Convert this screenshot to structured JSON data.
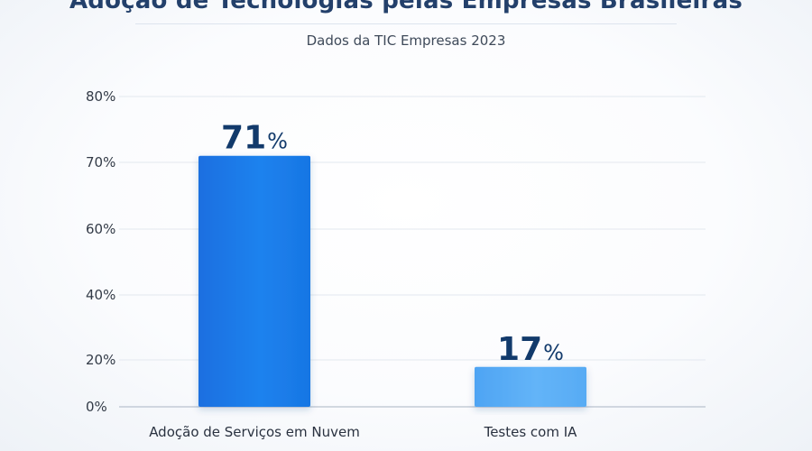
{
  "chart_data": {
    "type": "bar",
    "title": "Adoção de Tecnologias pelas Empresas Brasileiras",
    "subtitle": "Dados da TIC Empresas 2023",
    "categories": [
      "Adoção de Serviços em Nuvem",
      "Testes com IA"
    ],
    "values": [
      71,
      17
    ],
    "value_suffix": "%",
    "y_ticks": [
      0,
      20,
      40,
      60,
      70,
      80
    ],
    "y_tick_labels": [
      "0%",
      "20%",
      "40%",
      "60%",
      "70%",
      "80%"
    ],
    "grid": true,
    "colors": [
      "#1877e6",
      "#59adf5"
    ]
  }
}
